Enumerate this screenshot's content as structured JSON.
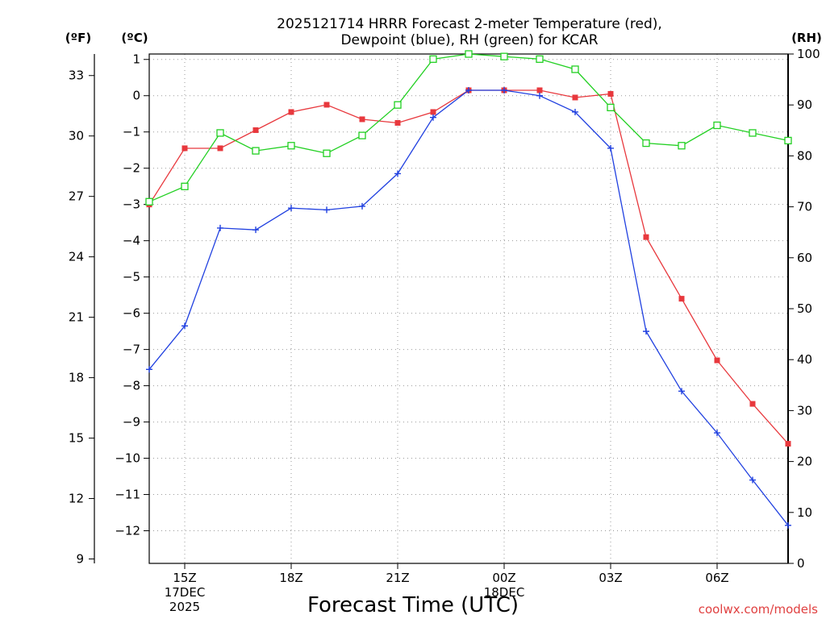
{
  "chart_data": {
    "type": "line",
    "title": [
      "2025121714 HRRR Forecast 2-meter Temperature (red),",
      "Dewpoint (blue), RH (green) for KCAR"
    ],
    "units": {
      "fahrenheit": "(ºF)",
      "celsius": "(ºC)",
      "rh": "(RH)"
    },
    "xlabel": "Forecast Time (UTC)",
    "x_hours": [
      14,
      15,
      16,
      17,
      18,
      19,
      20,
      21,
      22,
      23,
      24,
      25,
      26,
      27,
      28,
      29,
      30,
      31,
      32
    ],
    "xlim": [
      14,
      32
    ],
    "x_ticks": [
      {
        "hour": 15,
        "lines": [
          "15Z",
          "17DEC",
          "2025"
        ]
      },
      {
        "hour": 18,
        "lines": [
          "18Z"
        ]
      },
      {
        "hour": 21,
        "lines": [
          "21Z"
        ]
      },
      {
        "hour": 24,
        "lines": [
          "00Z",
          "18DEC"
        ]
      },
      {
        "hour": 27,
        "lines": [
          "03Z"
        ]
      },
      {
        "hour": 30,
        "lines": [
          "06Z"
        ]
      }
    ],
    "ylim_c": [
      -12.9,
      1.15
    ],
    "ylim_rh": [
      0,
      100
    ],
    "celsius_ticks": [
      1,
      0,
      -1,
      -2,
      -3,
      -4,
      -5,
      -6,
      -7,
      -8,
      -9,
      -10,
      -11,
      -12
    ],
    "fahrenheit_ticks": [
      33,
      30,
      27,
      24,
      21,
      18,
      15,
      12,
      9
    ],
    "rh_ticks": [
      100,
      90,
      80,
      70,
      60,
      50,
      40,
      30,
      20,
      10,
      0
    ],
    "series": [
      {
        "name": "Temperature",
        "color": "#e8383d",
        "axis": "celsius",
        "marker": "filled-square",
        "values": [
          -3.0,
          -1.45,
          -1.45,
          -0.95,
          -0.45,
          -0.25,
          -0.65,
          -0.75,
          -0.45,
          0.15,
          0.15,
          0.15,
          -0.05,
          0.05,
          -3.9,
          -5.6,
          -7.3,
          -8.5,
          -9.6
        ]
      },
      {
        "name": "Dewpoint",
        "color": "#2040e0",
        "axis": "celsius",
        "marker": "plus",
        "values": [
          -7.55,
          -6.35,
          -3.65,
          -3.7,
          -3.1,
          -3.15,
          -3.05,
          -2.15,
          -0.6,
          0.15,
          0.15,
          0.0,
          -0.45,
          -1.45,
          -6.5,
          -8.15,
          -9.3,
          -10.6,
          -11.85
        ]
      },
      {
        "name": "RH",
        "color": "#22d022",
        "axis": "rh",
        "marker": "open-square",
        "values": [
          71,
          74,
          84.5,
          81,
          82,
          80.5,
          84,
          90,
          99,
          100,
          99.5,
          99,
          97,
          89.5,
          82.5,
          82,
          86,
          84.5,
          83
        ]
      }
    ],
    "credit": "coolwx.com/models"
  }
}
